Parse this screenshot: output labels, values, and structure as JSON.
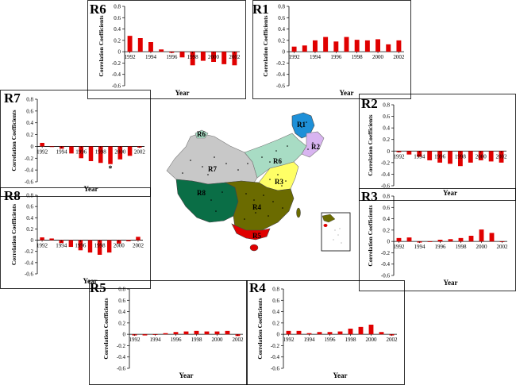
{
  "charts": [
    {
      "id": "R6",
      "label": "R6",
      "ylabel": "Correlation Coefficients",
      "xlabel": "Year",
      "ticks_y": [
        "0.8",
        "0.6",
        "0.4",
        "0.2",
        "0",
        "-0.2",
        "-0.4",
        "-0.6"
      ],
      "ticks_x": [
        "1992",
        "1994",
        "1996",
        "1998",
        "2000",
        "2002"
      ]
    },
    {
      "id": "R1",
      "label": "R1",
      "ylabel": "Correlation Coefficients",
      "xlabel": "Year",
      "ticks_y": [
        "0.8",
        "0.6",
        "0.4",
        "0.2",
        "0",
        "-0.2",
        "-0.4",
        "-0.6"
      ],
      "ticks_x": [
        "1992",
        "1994",
        "1996",
        "1998",
        "2000",
        "2002"
      ]
    },
    {
      "id": "R7",
      "label": "R7",
      "ylabel": "Correlation Coefficients",
      "xlabel": "Year",
      "ticks_y": [
        "0.8",
        "0.6",
        "0.4",
        "0.2",
        "0",
        "-0.2",
        "-0.4",
        "-0.6"
      ],
      "ticks_x": [
        "1992",
        "1994",
        "1996",
        "1998",
        "2000",
        "2002"
      ],
      "annotation": "*"
    },
    {
      "id": "R2",
      "label": "R2",
      "ylabel": "Correlation Coefficients",
      "xlabel": "Year",
      "ticks_y": [
        "0.8",
        "0.6",
        "0.4",
        "0.2",
        "0",
        "-0.2",
        "-0.4",
        "-0.6"
      ],
      "ticks_x": [
        "1992",
        "1994",
        "1996",
        "1998",
        "2000",
        "2002"
      ]
    },
    {
      "id": "R8",
      "label": "R8",
      "ylabel": "Correlation Coefficients",
      "xlabel": "Year",
      "ticks_y": [
        "0.8",
        "0.6",
        "0.4",
        "0.2",
        "0",
        "-0.2",
        "-0.4",
        "-0.6"
      ],
      "ticks_x": [
        "1992",
        "1994",
        "1996",
        "1998",
        "2000",
        "2002"
      ]
    },
    {
      "id": "R3",
      "label": "R3",
      "ylabel": "Correlation Coefficients",
      "xlabel": "Year",
      "ticks_y": [
        "0.8",
        "0.6",
        "0.4",
        "0.2",
        "0",
        "-0.2",
        "-0.4",
        "-0.6"
      ],
      "ticks_x": [
        "1992",
        "1994",
        "1996",
        "1998",
        "2000",
        "2002"
      ]
    },
    {
      "id": "R5",
      "label": "R5",
      "ylabel": "Correlation Coefficients",
      "xlabel": "Year",
      "ticks_y": [
        "0.8",
        "0.6",
        "0.4",
        "0.2",
        "0",
        "-0.2",
        "-0.4",
        "-0.6"
      ],
      "ticks_x": [
        "1992",
        "1994",
        "1996",
        "1998",
        "2000",
        "2002"
      ]
    },
    {
      "id": "R4",
      "label": "R4",
      "ylabel": "Correlation Coefficients",
      "xlabel": "Year",
      "ticks_y": [
        "0.8",
        "0.6",
        "0.4",
        "0.2",
        "0",
        "-0.2",
        "-0.4",
        "-0.6"
      ],
      "ticks_x": [
        "1992",
        "1994",
        "1996",
        "1998",
        "2000",
        "2002"
      ]
    }
  ],
  "map": {
    "region_labels": [
      "R1",
      "R2",
      "R3",
      "R4",
      "R5",
      "R6",
      "R6",
      "R7",
      "R8"
    ],
    "colors": {
      "R1": "#1e90d8",
      "R2": "#d8b4f0",
      "R3": "#ffff66",
      "R4": "#6b6b00",
      "R5": "#e00000",
      "R6": "#a8dcc4",
      "R7": "#c8c8c8",
      "R8": "#0a6e46"
    }
  },
  "chart_data": [
    {
      "type": "bar",
      "title": "R6",
      "xlabel": "Year",
      "ylabel": "Correlation Coefficients",
      "ylim": [
        -0.6,
        0.8
      ],
      "x": [
        1992,
        1993,
        1994,
        1995,
        1996,
        1997,
        1998,
        1999,
        2000,
        2001,
        2002
      ],
      "series": [
        {
          "values": [
            0.28,
            0.24,
            0.17,
            0.04,
            -0.02,
            -0.1,
            -0.24,
            -0.16,
            -0.18,
            -0.22,
            -0.24
          ]
        }
      ],
      "color": "#e00000",
      "grid": false
    },
    {
      "type": "bar",
      "title": "R1",
      "xlabel": "Year",
      "ylabel": "Correlation Coefficients",
      "ylim": [
        -0.6,
        0.8
      ],
      "x": [
        1992,
        1993,
        1994,
        1995,
        1996,
        1997,
        1998,
        1999,
        2000,
        2001,
        2002
      ],
      "series": [
        {
          "values": [
            0.09,
            0.11,
            0.2,
            0.26,
            0.18,
            0.26,
            0.21,
            0.2,
            0.22,
            0.13,
            0.2
          ]
        }
      ],
      "color": "#e00000",
      "grid": false
    },
    {
      "type": "bar",
      "title": "R7",
      "xlabel": "Year",
      "ylabel": "Correlation Coefficients",
      "ylim": [
        -0.6,
        0.8
      ],
      "x": [
        1992,
        1993,
        1994,
        1995,
        1996,
        1997,
        1998,
        1999,
        2000,
        2001,
        2002
      ],
      "series": [
        {
          "values": [
            0.06,
            -0.01,
            -0.04,
            -0.12,
            -0.2,
            -0.25,
            -0.28,
            -0.3,
            -0.22,
            -0.16,
            -0.02
          ]
        }
      ],
      "color": "#e00000",
      "grid": false,
      "annotations": [
        {
          "x": 1999,
          "text": "*"
        }
      ]
    },
    {
      "type": "bar",
      "title": "R2",
      "xlabel": "Year",
      "ylabel": "Correlation Coefficients",
      "ylim": [
        -0.6,
        0.8
      ],
      "x": [
        1992,
        1993,
        1994,
        1995,
        1996,
        1997,
        1998,
        1999,
        2000,
        2001,
        2002
      ],
      "series": [
        {
          "values": [
            -0.02,
            -0.06,
            -0.1,
            -0.16,
            -0.2,
            -0.22,
            -0.26,
            -0.2,
            -0.16,
            -0.18,
            -0.2
          ]
        }
      ],
      "color": "#e00000",
      "grid": false
    },
    {
      "type": "bar",
      "title": "R8",
      "xlabel": "Year",
      "ylabel": "Correlation Coefficients",
      "ylim": [
        -0.6,
        0.8
      ],
      "x": [
        1992,
        1993,
        1994,
        1995,
        1996,
        1997,
        1998,
        1999,
        2000,
        2001,
        2002
      ],
      "series": [
        {
          "values": [
            0.05,
            0.03,
            -0.05,
            -0.12,
            -0.18,
            -0.22,
            -0.26,
            -0.22,
            -0.06,
            -0.02,
            0.06
          ]
        }
      ],
      "color": "#e00000",
      "grid": false
    },
    {
      "type": "bar",
      "title": "R3",
      "xlabel": "Year",
      "ylabel": "Correlation Coefficients",
      "ylim": [
        -0.6,
        0.8
      ],
      "x": [
        1992,
        1993,
        1994,
        1995,
        1996,
        1997,
        1998,
        1999,
        2000,
        2001,
        2002
      ],
      "series": [
        {
          "values": [
            0.06,
            0.07,
            -0.02,
            0.0,
            0.03,
            0.04,
            0.06,
            0.1,
            0.21,
            0.15,
            0.0
          ]
        }
      ],
      "color": "#e00000",
      "grid": false
    },
    {
      "type": "bar",
      "title": "R5",
      "xlabel": "Year",
      "ylabel": "Correlation Coefficients",
      "ylim": [
        -0.6,
        0.8
      ],
      "x": [
        1992,
        1993,
        1994,
        1995,
        1996,
        1997,
        1998,
        1999,
        2000,
        2001,
        2002
      ],
      "series": [
        {
          "values": [
            -0.02,
            -0.02,
            -0.01,
            0.02,
            0.04,
            0.05,
            0.06,
            0.05,
            0.05,
            0.06,
            -0.03
          ]
        }
      ],
      "color": "#e00000",
      "grid": false
    },
    {
      "type": "bar",
      "title": "R4",
      "xlabel": "Year",
      "ylabel": "Correlation Coefficients",
      "ylim": [
        -0.6,
        0.8
      ],
      "x": [
        1992,
        1993,
        1994,
        1995,
        1996,
        1997,
        1998,
        1999,
        2000,
        2001,
        2002
      ],
      "series": [
        {
          "values": [
            0.06,
            0.06,
            0.02,
            0.04,
            0.04,
            0.05,
            0.1,
            0.13,
            0.17,
            0.04,
            -0.02
          ]
        }
      ],
      "color": "#e00000",
      "grid": false
    }
  ]
}
